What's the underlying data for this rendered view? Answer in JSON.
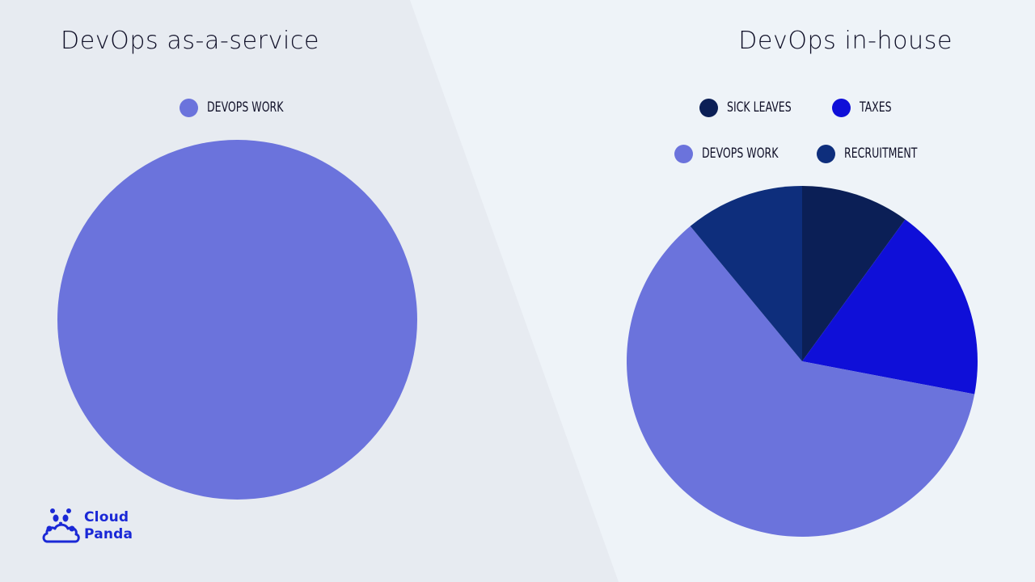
{
  "colors": {
    "devops_work": "#6b73dc",
    "sick_leaves": "#0b1f56",
    "taxes": "#0f0fd8",
    "recruitment": "#0e2e7c",
    "brand": "#1a28d6"
  },
  "brand": {
    "name_line1": "Cloud",
    "name_line2": "Panda",
    "icon": "cloud-panda-icon"
  },
  "chart_data": [
    {
      "type": "pie",
      "title": "DevOps as-a-service",
      "legend": [
        "DEVOPS WORK"
      ],
      "slices": [
        {
          "label": "DEVOPS WORK",
          "value": 100,
          "color": "#6b73dc"
        }
      ]
    },
    {
      "type": "pie",
      "title": "DevOps in-house",
      "legend": [
        "SICK LEAVES",
        "TAXES",
        "DEVOPS WORK",
        "RECRUITMENT"
      ],
      "slices": [
        {
          "label": "SICK LEAVES",
          "value": 10,
          "color": "#0b1f56"
        },
        {
          "label": "TAXES",
          "value": 18,
          "color": "#0f0fd8"
        },
        {
          "label": "DEVOPS WORK",
          "value": 61,
          "color": "#6b73dc"
        },
        {
          "label": "RECRUITMENT",
          "value": 11,
          "color": "#0e2e7c"
        }
      ]
    }
  ]
}
